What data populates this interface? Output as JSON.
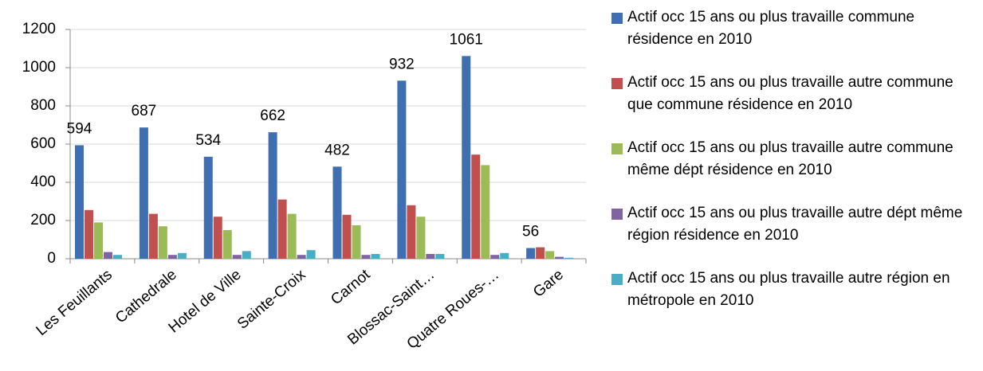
{
  "chart_data": {
    "type": "bar",
    "categories": [
      "Les Feuillants",
      "Cathedrale",
      "Hotel de Ville",
      "Sainte-Croix",
      "Carnot",
      "Blossac-Saint…",
      "Quatre Roues-…",
      "Gare"
    ],
    "series": [
      {
        "name": "Actif occ 15 ans ou plus travaille commune résidence en 2010",
        "color": "#3f6fb0",
        "values": [
          594,
          687,
          534,
          662,
          482,
          932,
          1061,
          56
        ],
        "show_labels": true
      },
      {
        "name": "Actif occ 15 ans ou plus travaille autre commune que commune résidence en 2010",
        "color": "#c0504d",
        "values": [
          255,
          235,
          220,
          310,
          230,
          280,
          545,
          60
        ]
      },
      {
        "name": "Actif occ 15 ans ou plus travaille autre commune même dépt résidence en 2010",
        "color": "#9bbb59",
        "values": [
          190,
          170,
          150,
          235,
          175,
          220,
          490,
          40
        ]
      },
      {
        "name": "Actif occ 15 ans ou plus travaille autre dépt même région résidence en 2010",
        "color": "#8064a2",
        "values": [
          35,
          20,
          20,
          20,
          20,
          25,
          20,
          10
        ]
      },
      {
        "name": "Actif occ 15 ans ou plus travaille autre région en métropole en 2010",
        "color": "#4bacc6",
        "values": [
          20,
          30,
          40,
          45,
          25,
          25,
          30,
          5
        ]
      }
    ],
    "ylim": [
      0,
      1200
    ],
    "yticks": [
      0,
      200,
      400,
      600,
      800,
      1000,
      1200
    ],
    "grid": true,
    "legend": "right"
  }
}
